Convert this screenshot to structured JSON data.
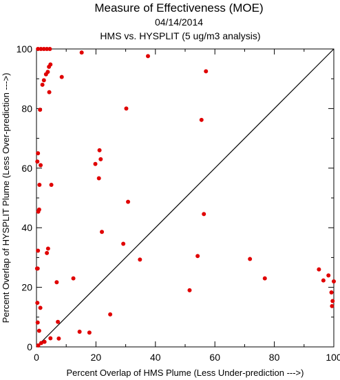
{
  "chart_data": {
    "type": "scatter",
    "title": "Measure of Effectiveness (MOE)",
    "subtitle": "04/14/2014",
    "subtitle2": "HMS vs. HYSPLIT  (5 ug/m3 analysis)",
    "xlabel": "Percent Overlap of HMS Plume (Less Under-prediction --->)",
    "ylabel": "Percent Overlap of HYSPLIT Plume (Less Over-prediction --->)",
    "xlim": [
      0,
      100
    ],
    "ylim": [
      0,
      100
    ],
    "xticks": [
      0,
      20,
      40,
      60,
      80,
      100
    ],
    "yticks": [
      0,
      20,
      40,
      60,
      80,
      100
    ],
    "tick_labels": {
      "x": [
        "0",
        "20",
        "40",
        "60",
        "80",
        "100"
      ],
      "y": [
        "0",
        "20",
        "40",
        "60",
        "80",
        "100"
      ]
    },
    "grid": false,
    "reference_line": "diagonal y = x",
    "point_color": "#e00000",
    "points": [
      [
        0.5,
        100
      ],
      [
        1.5,
        100
      ],
      [
        2.5,
        100
      ],
      [
        3.5,
        100
      ],
      [
        4.5,
        100
      ],
      [
        15.2,
        98.8
      ],
      [
        37.5,
        97.6
      ],
      [
        57,
        92.5
      ],
      [
        4.7,
        94.8
      ],
      [
        4.2,
        94
      ],
      [
        3.8,
        92.3
      ],
      [
        3.2,
        91.5
      ],
      [
        2.5,
        89.5
      ],
      [
        2,
        88
      ],
      [
        8.5,
        90.6
      ],
      [
        4.3,
        85.5
      ],
      [
        1.2,
        79.6
      ],
      [
        30.2,
        80
      ],
      [
        55.5,
        76.2
      ],
      [
        21.2,
        66
      ],
      [
        0.5,
        65
      ],
      [
        21.6,
        63
      ],
      [
        0.3,
        62.2
      ],
      [
        1.4,
        61
      ],
      [
        19.8,
        61.4
      ],
      [
        21,
        56.6
      ],
      [
        1,
        54.4
      ],
      [
        5,
        54.4
      ],
      [
        30.8,
        48.7
      ],
      [
        0.9,
        46.1
      ],
      [
        0.6,
        45.4
      ],
      [
        56.3,
        44.6
      ],
      [
        22,
        38.6
      ],
      [
        29.2,
        34.6
      ],
      [
        3.9,
        33
      ],
      [
        0.5,
        32.3
      ],
      [
        3.5,
        31.5
      ],
      [
        34.8,
        29.3
      ],
      [
        54.2,
        30.5
      ],
      [
        71.8,
        29.5
      ],
      [
        0.4,
        26.3
      ],
      [
        0.2,
        26.3
      ],
      [
        12.4,
        23
      ],
      [
        6.8,
        21.7
      ],
      [
        76.8,
        23
      ],
      [
        95,
        26
      ],
      [
        98.2,
        24
      ],
      [
        96.5,
        22.3
      ],
      [
        100,
        22
      ],
      [
        99.2,
        18.3
      ],
      [
        51.5,
        19
      ],
      [
        0.3,
        14.8
      ],
      [
        99.6,
        15.4
      ],
      [
        99.4,
        13.7
      ],
      [
        1.3,
        13.1
      ],
      [
        24.8,
        10.9
      ],
      [
        0.4,
        8.2
      ],
      [
        7.2,
        8.4
      ],
      [
        0.9,
        5.4
      ],
      [
        14.5,
        5.1
      ],
      [
        17.8,
        4.8
      ],
      [
        4.7,
        2.9
      ],
      [
        7.5,
        2.8
      ],
      [
        2.7,
        1.7
      ],
      [
        1.6,
        1.3
      ],
      [
        0.6,
        0.5
      ]
    ]
  }
}
